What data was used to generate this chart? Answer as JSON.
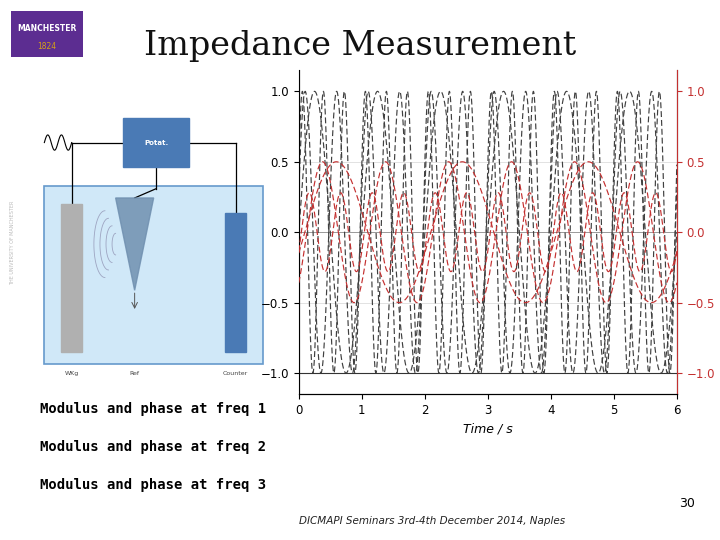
{
  "title": "Impedance Measurement",
  "xlabel": "Time / s",
  "xlim": [
    0,
    6
  ],
  "ylim": [
    -1.15,
    1.15
  ],
  "x_ticks": [
    0,
    1,
    2,
    3,
    4,
    5,
    6
  ],
  "y_ticks": [
    -1.0,
    -0.5,
    0.0,
    0.5,
    1.0
  ],
  "bg_color": "#ffffff",
  "modulus_color": "#404040",
  "phase_color": "#c43030",
  "modulus_freqs": [
    1.0,
    2.0,
    3.0
  ],
  "modulus_amps": [
    1.0,
    1.0,
    1.0
  ],
  "modulus_phases": [
    0.0,
    0.3,
    0.5
  ],
  "phase_freqs": [
    0.5,
    1.0,
    2.0
  ],
  "phase_amps": [
    0.5,
    0.5,
    0.28
  ],
  "phase_phases": [
    -0.3,
    -0.8,
    -0.5
  ],
  "text_freq1": "Modulus and phase at freq 1",
  "text_freq2": "Modulus and phase at freq 2",
  "text_freq3": "Modulus and phase at freq 3",
  "footer_text": "DICMAPI Seminars 3rd-4th December 2014, Naples",
  "page_num": "30",
  "logo_bg": "#5c2d91",
  "logo_text1": "MANCHESTER",
  "logo_text2": "1824",
  "logo_text2_color": "#d4a017"
}
